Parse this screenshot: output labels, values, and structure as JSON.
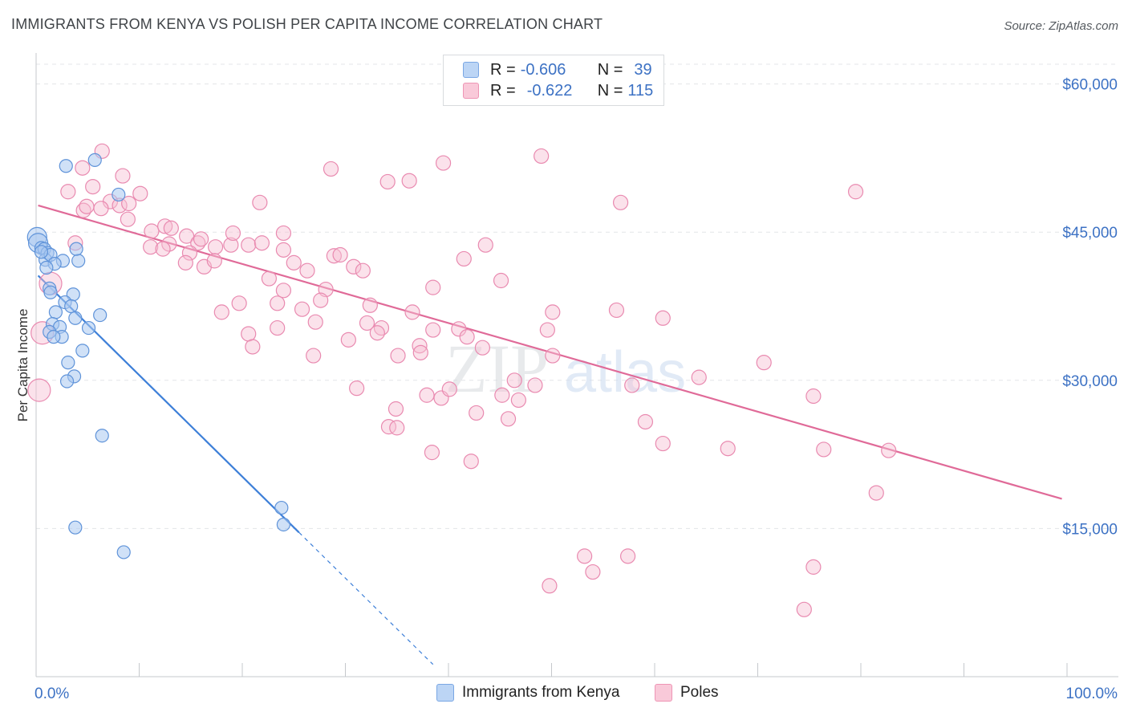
{
  "title": "IMMIGRANTS FROM KENYA VS POLISH PER CAPITA INCOME CORRELATION CHART",
  "source": "Source: ZipAtlas.com",
  "colors": {
    "kenya": "#3d7fd8",
    "poles": "#e06a98",
    "accent_text": "#3d72c4"
  },
  "legend": {
    "rows": [
      {
        "r_label": "R = ",
        "r_value": "-0.606",
        "n_label": "N = ",
        "n_value": "39"
      },
      {
        "r_label": "R = ",
        "r_value": "-0.622",
        "n_label": "N = ",
        "n_value": "115"
      }
    ]
  },
  "bottom_legend": {
    "kenya": "Immigrants from Kenya",
    "poles": "Poles"
  },
  "chart_data": {
    "type": "scatter",
    "ylabel": "Per Capita Income",
    "xlim": [
      0,
      100
    ],
    "ylim": [
      0,
      62000
    ],
    "x_tick_labels": [
      "0.0%",
      "100.0%"
    ],
    "y_ticks": [
      {
        "value": 15000,
        "label": "$15,000"
      },
      {
        "value": 30000,
        "label": "$30,000"
      },
      {
        "value": 45000,
        "label": "$45,000"
      },
      {
        "value": 60000,
        "label": "$60,000"
      }
    ],
    "series": [
      {
        "name": "Immigrants from Kenya",
        "r": -0.606,
        "n": 39,
        "trend": {
          "x0": 0.2,
          "y0": 40600,
          "x1": 25.5,
          "y1": 14600,
          "dash_x1": 38.5
        },
        "points": [
          [
            0.1,
            44500
          ],
          [
            0.2,
            43900
          ],
          [
            0.5,
            43400
          ],
          [
            0.8,
            43300
          ],
          [
            1.1,
            42900
          ],
          [
            0.9,
            42200
          ],
          [
            1.4,
            42700
          ],
          [
            2.6,
            42100
          ],
          [
            4.1,
            42100
          ],
          [
            3.9,
            43300
          ],
          [
            1.8,
            41800
          ],
          [
            1.0,
            41400
          ],
          [
            5.7,
            52300
          ],
          [
            2.9,
            51700
          ],
          [
            8.0,
            48800
          ],
          [
            1.3,
            39300
          ],
          [
            1.4,
            38900
          ],
          [
            3.6,
            38700
          ],
          [
            2.8,
            37900
          ],
          [
            3.4,
            37500
          ],
          [
            1.9,
            36900
          ],
          [
            6.2,
            36600
          ],
          [
            3.8,
            36300
          ],
          [
            1.6,
            35700
          ],
          [
            2.3,
            35400
          ],
          [
            5.1,
            35300
          ],
          [
            1.3,
            34900
          ],
          [
            2.5,
            34400
          ],
          [
            1.7,
            34400
          ],
          [
            4.5,
            33000
          ],
          [
            3.1,
            31800
          ],
          [
            3.7,
            30400
          ],
          [
            3.0,
            29900
          ],
          [
            6.4,
            24400
          ],
          [
            23.8,
            17100
          ],
          [
            3.8,
            15100
          ],
          [
            24.0,
            15400
          ],
          [
            8.5,
            12600
          ],
          [
            0.5,
            43000
          ]
        ]
      },
      {
        "name": "Poles",
        "r": -0.622,
        "n": 115,
        "trend": {
          "x0": 0.2,
          "y0": 47700,
          "x1": 99.5,
          "y1": 18000
        },
        "points": [
          [
            0.3,
            29000
          ],
          [
            0.6,
            34800
          ],
          [
            1.4,
            39800
          ],
          [
            3.8,
            43900
          ],
          [
            4.5,
            51500
          ],
          [
            6.4,
            53200
          ],
          [
            8.4,
            50700
          ],
          [
            3.1,
            49100
          ],
          [
            5.5,
            49600
          ],
          [
            7.2,
            48100
          ],
          [
            8.1,
            47700
          ],
          [
            9.0,
            47900
          ],
          [
            4.6,
            47200
          ],
          [
            10.1,
            48900
          ],
          [
            6.3,
            47400
          ],
          [
            8.9,
            46300
          ],
          [
            11.2,
            45100
          ],
          [
            12.5,
            45600
          ],
          [
            13.1,
            45400
          ],
          [
            11.1,
            43500
          ],
          [
            12.9,
            43800
          ],
          [
            12.3,
            43300
          ],
          [
            14.6,
            44600
          ],
          [
            15.7,
            43900
          ],
          [
            17.4,
            43500
          ],
          [
            18.9,
            43700
          ],
          [
            16.0,
            44300
          ],
          [
            14.9,
            42900
          ],
          [
            14.5,
            41900
          ],
          [
            16.3,
            41500
          ],
          [
            17.3,
            42100
          ],
          [
            19.1,
            44900
          ],
          [
            20.6,
            43700
          ],
          [
            21.9,
            43900
          ],
          [
            24.0,
            44900
          ],
          [
            24.0,
            43200
          ],
          [
            25.0,
            41900
          ],
          [
            26.3,
            41100
          ],
          [
            28.9,
            42600
          ],
          [
            29.5,
            42700
          ],
          [
            30.8,
            41500
          ],
          [
            31.7,
            41100
          ],
          [
            28.1,
            39200
          ],
          [
            22.6,
            40300
          ],
          [
            24.0,
            39100
          ],
          [
            27.6,
            38100
          ],
          [
            25.8,
            37200
          ],
          [
            23.4,
            37800
          ],
          [
            19.7,
            37800
          ],
          [
            18.0,
            36900
          ],
          [
            27.1,
            35900
          ],
          [
            23.4,
            35300
          ],
          [
            20.6,
            34700
          ],
          [
            21.0,
            33400
          ],
          [
            26.9,
            32500
          ],
          [
            30.3,
            34100
          ],
          [
            32.4,
            37600
          ],
          [
            32.1,
            35800
          ],
          [
            33.5,
            35300
          ],
          [
            33.1,
            34800
          ],
          [
            35.1,
            32500
          ],
          [
            37.2,
            33500
          ],
          [
            36.5,
            36900
          ],
          [
            38.5,
            35100
          ],
          [
            38.5,
            39400
          ],
          [
            41.0,
            35200
          ],
          [
            41.5,
            42300
          ],
          [
            43.6,
            43700
          ],
          [
            45.1,
            40100
          ],
          [
            43.3,
            33300
          ],
          [
            45.2,
            28500
          ],
          [
            48.4,
            29500
          ],
          [
            49.6,
            35100
          ],
          [
            50.1,
            32500
          ],
          [
            50.1,
            36900
          ],
          [
            46.4,
            30000
          ],
          [
            41.8,
            34400
          ],
          [
            39.3,
            28200
          ],
          [
            40.1,
            29100
          ],
          [
            45.8,
            26100
          ],
          [
            42.7,
            26700
          ],
          [
            37.9,
            28500
          ],
          [
            46.8,
            28000
          ],
          [
            37.3,
            32800
          ],
          [
            34.9,
            27100
          ],
          [
            31.1,
            29200
          ],
          [
            34.2,
            25300
          ],
          [
            35.0,
            25200
          ],
          [
            38.4,
            22700
          ],
          [
            42.2,
            21800
          ],
          [
            56.3,
            37100
          ],
          [
            64.3,
            30300
          ],
          [
            60.8,
            36300
          ],
          [
            70.6,
            31800
          ],
          [
            60.8,
            23600
          ],
          [
            67.1,
            23100
          ],
          [
            75.4,
            28400
          ],
          [
            76.4,
            23000
          ],
          [
            57.8,
            29500
          ],
          [
            75.4,
            11100
          ],
          [
            54.0,
            10600
          ],
          [
            57.4,
            12200
          ],
          [
            82.7,
            22900
          ],
          [
            81.5,
            18600
          ],
          [
            74.5,
            6800
          ],
          [
            49.8,
            9200
          ],
          [
            53.2,
            12200
          ],
          [
            59.1,
            25800
          ],
          [
            21.7,
            48000
          ],
          [
            28.6,
            51400
          ],
          [
            34.1,
            50100
          ],
          [
            36.2,
            50200
          ],
          [
            39.5,
            52000
          ],
          [
            49.0,
            52700
          ],
          [
            56.7,
            48000
          ],
          [
            79.5,
            49100
          ],
          [
            4.9,
            47600
          ]
        ]
      }
    ]
  }
}
